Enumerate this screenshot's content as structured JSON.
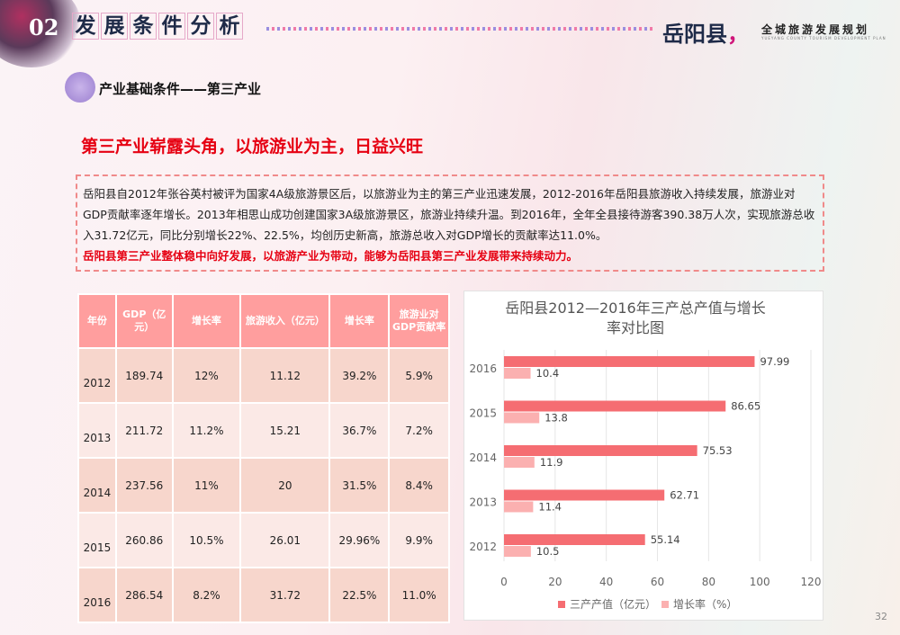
{
  "header": {
    "section_num": "02",
    "section_title": [
      "发",
      "展",
      "条",
      "件",
      "分",
      "析"
    ],
    "logo": "岳阳县",
    "logo_mark": "，",
    "logo_sub": "全城旅游发展规划",
    "logo_tiny": "YUEYANG COUNTY TOURISM DEVELOPMENT PLAN"
  },
  "subtitle": "产业基础条件——第三产业",
  "headline": "第三产业崭露头角，以旅游业为主，日益兴旺",
  "paragraph": "岳阳县自2012年张谷英村被评为国家4A级旅游景区后，以旅游业为主的第三产业迅速发展，2012-2016年岳阳县旅游收入持续发展，旅游业对GDP贡献率逐年增长。2013年相思山成功创建国家3A级旅游景区，旅游业持续升温。到2016年，全年全县接待游客390.38万人次，实现旅游总收入31.72亿元，同比分别增长22%、22.5%，均创历史新高，旅游总收入对GDP增长的贡献率达11.0%。",
  "paragraph_emphasis": "岳阳县第三产业整体稳中向好发展，以旅游产业为带动，能够为岳阳县第三产业发展带来持续动力。",
  "table": {
    "headers": [
      "年份",
      "GDP（亿元）",
      "增长率",
      "旅游收入（亿元）",
      "增长率",
      "旅游业对GDP贡献率"
    ],
    "rows": [
      [
        "2012",
        "189.74",
        "12%",
        "11.12",
        "39.2%",
        "5.9%"
      ],
      [
        "2013",
        "211.72",
        "11.2%",
        "15.21",
        "36.7%",
        "7.2%"
      ],
      [
        "2014",
        "237.56",
        "11%",
        "20",
        "31.5%",
        "8.4%"
      ],
      [
        "2015",
        "260.86",
        "10.5%",
        "26.01",
        "29.96%",
        "9.9%"
      ],
      [
        "2016",
        "286.54",
        "8.2%",
        "31.72",
        "22.5%",
        "11.0%"
      ]
    ]
  },
  "chart_data": {
    "type": "bar",
    "orientation": "horizontal",
    "title": "岳阳县2012—2016年三产总产值与增长率对比图",
    "categories": [
      "2012",
      "2013",
      "2014",
      "2015",
      "2016"
    ],
    "series": [
      {
        "name": "三产产值（亿元）",
        "values": [
          55.14,
          62.71,
          75.53,
          86.65,
          97.99
        ],
        "color": "#f56d72"
      },
      {
        "name": "增长率（%）",
        "values": [
          10.5,
          11.4,
          11.9,
          13.8,
          10.4
        ],
        "color": "#fbb0b0"
      }
    ],
    "xlim": [
      0,
      120
    ],
    "xticks": [
      0,
      20,
      40,
      60,
      80,
      100,
      120
    ],
    "grid": true,
    "legend": "bottom"
  },
  "page_number": "32"
}
